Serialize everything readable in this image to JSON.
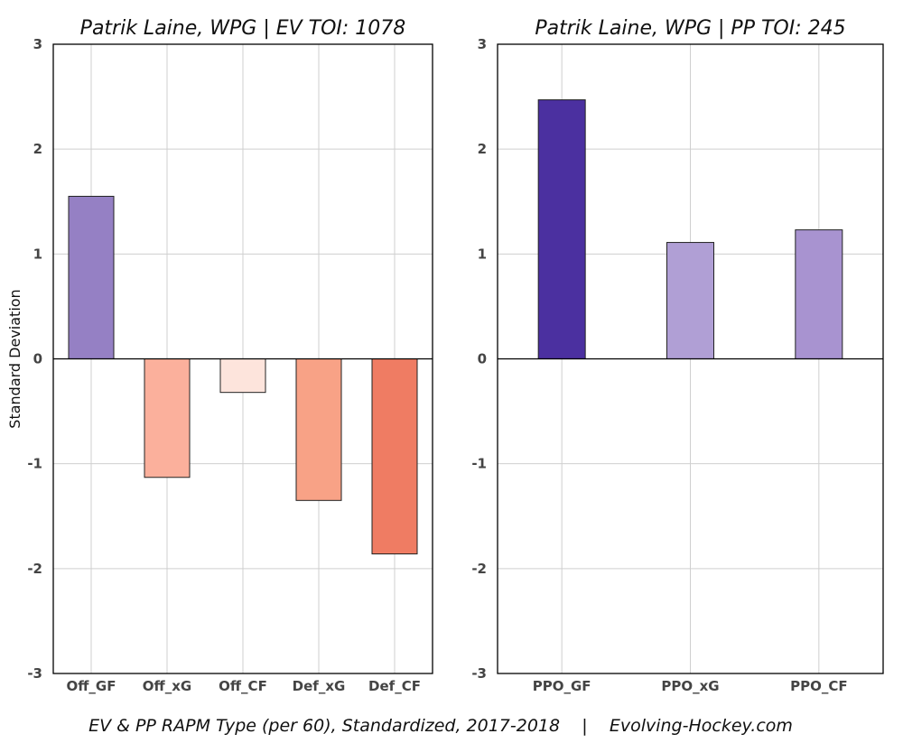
{
  "footer": "EV & PP RAPM Type (per 60), Standardized, 2017-2018    |    Evolving-Hockey.com",
  "chart_data": [
    {
      "type": "bar",
      "title": "Patrik Laine, WPG  |  EV TOI: 1078",
      "ylabel": "Standard Deviation",
      "xlabel": "",
      "ylim": [
        -3,
        3
      ],
      "yticks": [
        3,
        2,
        1,
        0,
        -1,
        -2,
        -3
      ],
      "grid": true,
      "categories": [
        "Off_GF",
        "Off_xG",
        "Off_CF",
        "Def_xG",
        "Def_CF"
      ],
      "values": [
        1.55,
        -1.13,
        -0.32,
        -1.35,
        -1.86
      ],
      "colors": [
        "#9580c4",
        "#fbb09c",
        "#fde4dc",
        "#f8a286",
        "#ef7c63"
      ]
    },
    {
      "type": "bar",
      "title": "Patrik Laine, WPG  |  PP TOI: 245",
      "ylabel": "",
      "xlabel": "",
      "ylim": [
        -3,
        3
      ],
      "yticks": [
        3,
        2,
        1,
        0,
        -1,
        -2,
        -3
      ],
      "grid": true,
      "categories": [
        "PPO_GF",
        "PPO_xG",
        "PPO_CF"
      ],
      "values": [
        2.47,
        1.11,
        1.23
      ],
      "colors": [
        "#4b30a0",
        "#b09fd5",
        "#a893d0"
      ]
    }
  ]
}
